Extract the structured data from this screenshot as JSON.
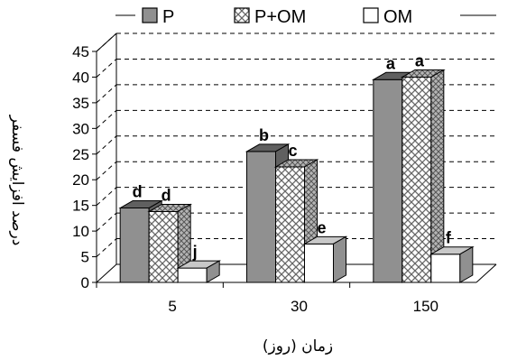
{
  "chart_data": {
    "type": "bar",
    "categories": [
      "5",
      "30",
      "150"
    ],
    "series": [
      {
        "name": "P",
        "values": [
          14.5,
          25.5,
          39.5
        ],
        "letters": [
          "d",
          "b",
          "a"
        ],
        "color": "#808080",
        "pattern": "solid"
      },
      {
        "name": "P+OM",
        "values": [
          13.8,
          22.5,
          40.0
        ],
        "letters": [
          "d",
          "c",
          "a"
        ],
        "color": "#ffffff",
        "pattern": "crosshatch"
      },
      {
        "name": "OM",
        "values": [
          2.8,
          7.5,
          5.5
        ],
        "letters": [
          "j",
          "e",
          "f"
        ],
        "color": "#ffffff",
        "pattern": "none"
      }
    ],
    "title": "",
    "xlabel": "زمان (روز)",
    "ylabel": "درصد افزایش فسفر",
    "ylim": [
      0,
      45
    ],
    "yticks": [
      0,
      5,
      10,
      15,
      20,
      25,
      30,
      35,
      40,
      45
    ],
    "grid": true,
    "three_d": true,
    "legend_position": "top"
  }
}
